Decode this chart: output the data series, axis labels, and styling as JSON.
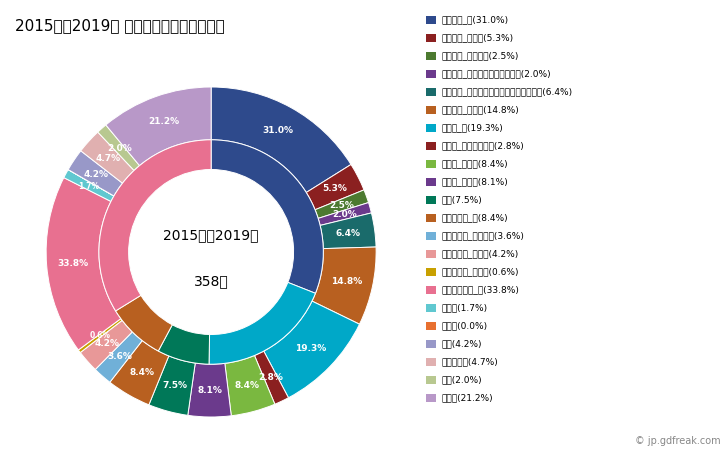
{
  "title": "2015年～2019年 御宿町の男性の死因構成",
  "center_text_line1": "2015年～2019年",
  "center_text_line2": "358人",
  "outer_slices": [
    {
      "label": "悪性腫瘍_計(31.0%)",
      "value": 31.0,
      "color": "#2E4A8C"
    },
    {
      "label": "悪性腫瘍_胃がん(5.3%)",
      "value": 5.3,
      "color": "#8B2020"
    },
    {
      "label": "悪性腫瘍_大腸がん(2.5%)",
      "value": 2.5,
      "color": "#4C7A30"
    },
    {
      "label": "悪性腫瘍_肝がん・肝内胆管がん(2.0%)",
      "value": 2.0,
      "color": "#6B3A8C"
    },
    {
      "label": "悪性腫瘍_気管がん・気管支がん・肺がん(6.4%)",
      "value": 6.4,
      "color": "#1A6B6B"
    },
    {
      "label": "悪性腫瘍_その他(14.8%)",
      "value": 14.8,
      "color": "#B86020"
    },
    {
      "label": "心疾患_計(19.3%)",
      "value": 19.3,
      "color": "#00A8C8"
    },
    {
      "label": "心疾患_急性心筋梗塞(2.8%)",
      "value": 2.8,
      "color": "#8B2020"
    },
    {
      "label": "心疾患_心不全(8.4%)",
      "value": 8.4,
      "color": "#7AB840"
    },
    {
      "label": "心疾患_その他(8.1%)",
      "value": 8.1,
      "color": "#6B3A8C"
    },
    {
      "label": "肺炎(7.5%)",
      "value": 7.5,
      "color": "#007858"
    },
    {
      "label": "脳血管疾患_計(8.4%)",
      "value": 8.4,
      "color": "#B86020"
    },
    {
      "label": "脳血管疾患_脳内出血(3.6%)",
      "value": 3.6,
      "color": "#70B0D8"
    },
    {
      "label": "脳血管疾患_脳梗塞(4.2%)",
      "value": 4.2,
      "color": "#E89898"
    },
    {
      "label": "脳血管疾患_その他(0.6%)",
      "value": 0.6,
      "color": "#C8A000"
    },
    {
      "label": "その他の死因_計(33.8%)",
      "value": 33.8,
      "color": "#E87090"
    },
    {
      "label": "肝疾患(1.7%)",
      "value": 1.7,
      "color": "#60C8D0"
    },
    {
      "label": "腎不全(0.0%)",
      "value": 0.001,
      "color": "#E87030"
    },
    {
      "label": "老衰(4.2%)",
      "value": 4.2,
      "color": "#9898C8"
    },
    {
      "label": "不慮の事故(4.7%)",
      "value": 4.7,
      "color": "#E0B0B0"
    },
    {
      "label": "自殺(2.0%)",
      "value": 2.0,
      "color": "#B8C890"
    },
    {
      "label": "その他(21.2%)",
      "value": 21.2,
      "color": "#B898C8"
    }
  ],
  "inner_slices": [
    {
      "label": "悪性腫瘍_計",
      "value": 31.0,
      "color": "#2E4A8C"
    },
    {
      "label": "心疾患_計",
      "value": 19.3,
      "color": "#00A8C8"
    },
    {
      "label": "肺炎",
      "value": 7.5,
      "color": "#007858"
    },
    {
      "label": "脳血管疾患_計",
      "value": 8.4,
      "color": "#B86020"
    },
    {
      "label": "その他の死因_計",
      "value": 33.8,
      "color": "#E87090"
    }
  ],
  "background_color": "#ffffff"
}
